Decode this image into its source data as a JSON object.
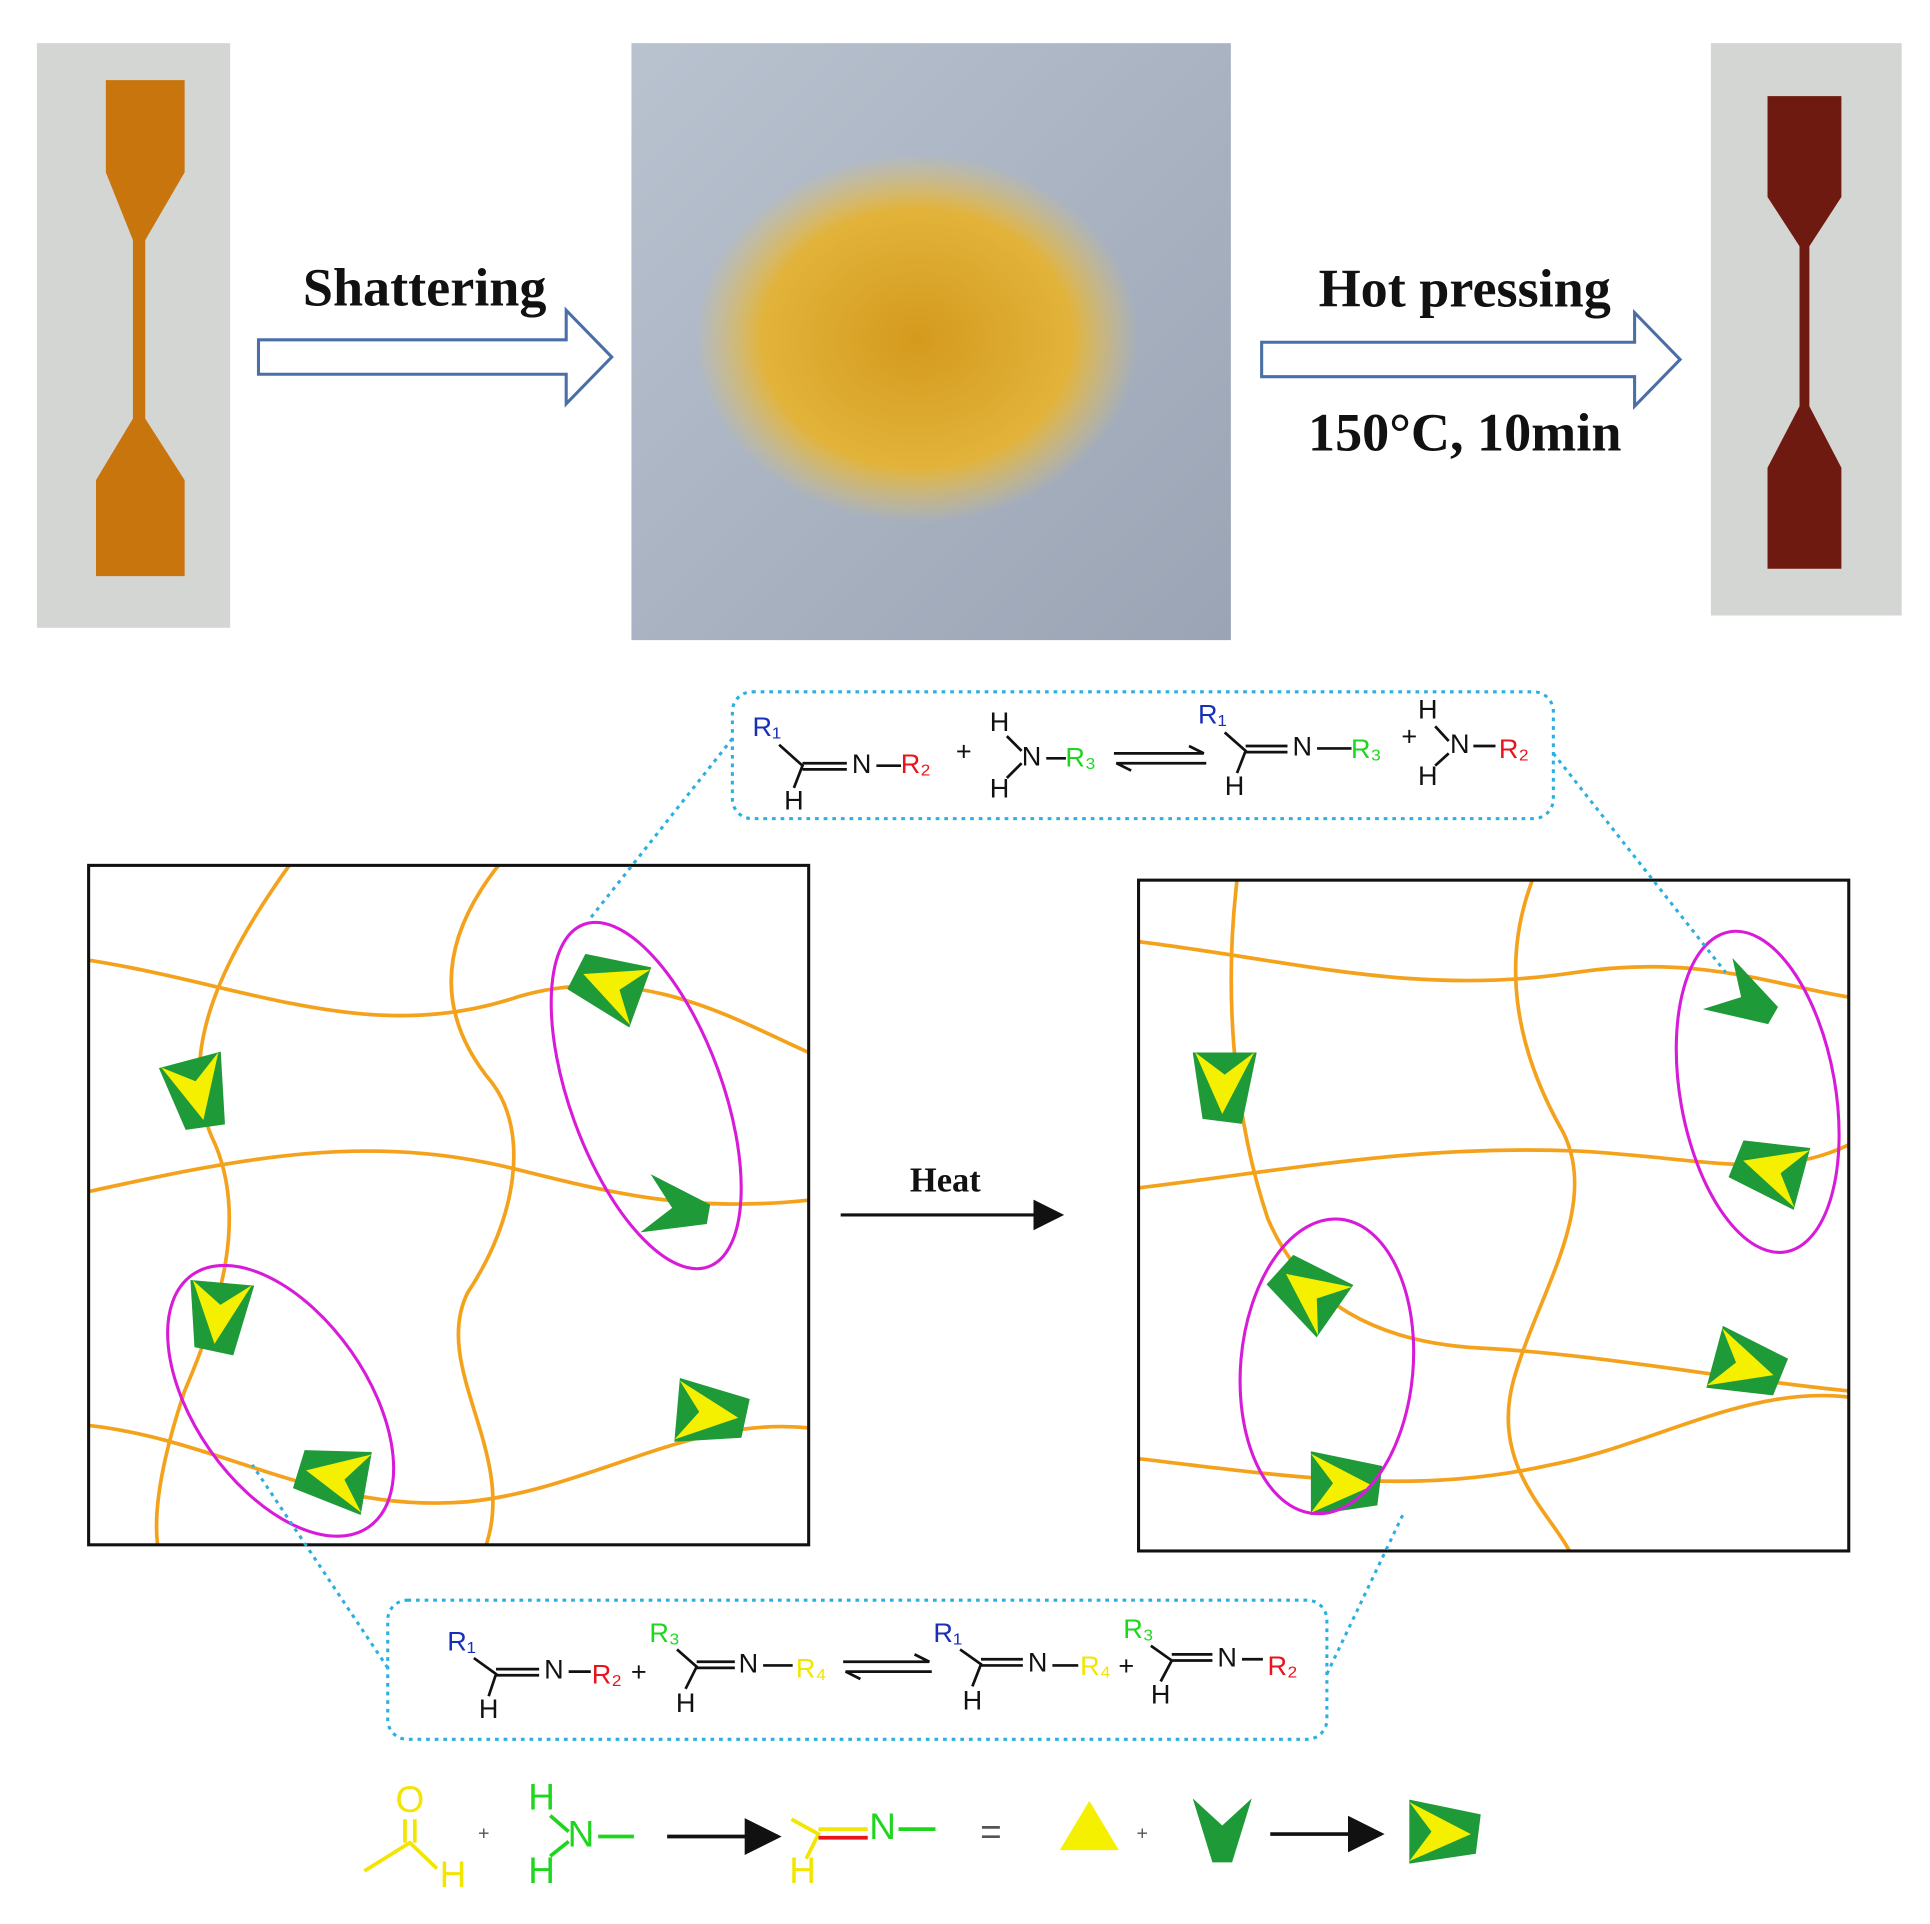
{
  "photos_row": {
    "step_1_label": "Shattering",
    "step_2_label": "Hot pressing",
    "step_2_condition": "150°C, 10min"
  },
  "network": {
    "arrow_label": "Heat"
  },
  "amine_exchange": [
    "R₁",
    "H",
    "N",
    "R₂",
    "+",
    "H",
    "N",
    "H",
    "R₃",
    "R₁",
    "H",
    "N",
    "R₃",
    "+",
    "H",
    "N",
    "H",
    "R₂"
  ],
  "imine_metathesis": [
    "R₁",
    "H",
    "N",
    "R₂",
    "+",
    "R₃",
    "H",
    "N",
    "R₄",
    "R₁",
    "H",
    "N",
    "R₄",
    "+",
    "R₃",
    "H",
    "N",
    "R₂"
  ],
  "legend": [
    "O",
    "H",
    "+",
    "H",
    "N",
    "H",
    "H",
    "N",
    "=",
    "+"
  ]
}
